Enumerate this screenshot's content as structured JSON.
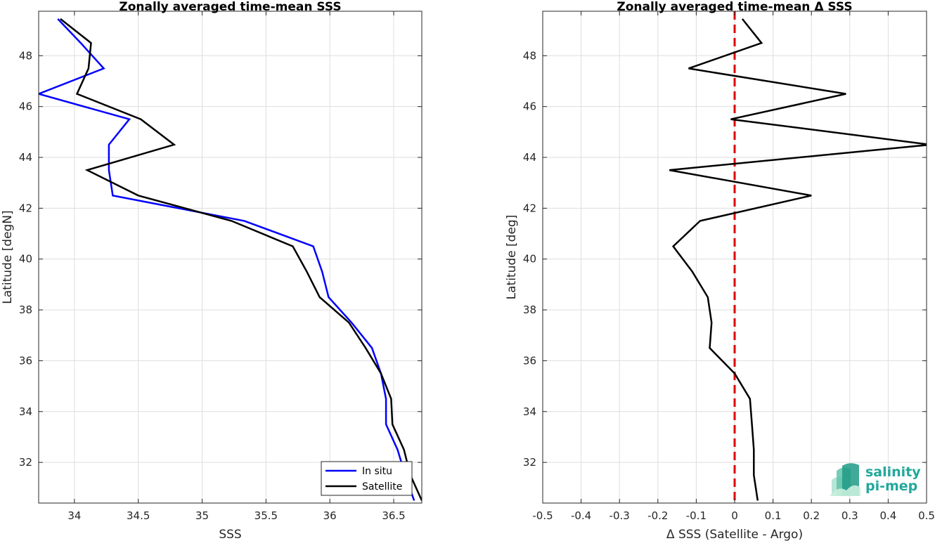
{
  "chart_data": [
    {
      "type": "line",
      "title": "Zonally averaged time-mean SSS",
      "xlabel": "SSS",
      "ylabel": "Latitude [degN]",
      "xlim": [
        33.72,
        36.72
      ],
      "ylim": [
        30.4,
        49.75
      ],
      "xticks": [
        34,
        34.5,
        35,
        35.5,
        36,
        36.5
      ],
      "xtick_labels": [
        "34",
        "34.5",
        "35",
        "35.5",
        "36",
        "36.5"
      ],
      "yticks": [
        32,
        34,
        36,
        38,
        40,
        42,
        44,
        46,
        48
      ],
      "ytick_labels": [
        "32",
        "34",
        "36",
        "38",
        "40",
        "42",
        "44",
        "46",
        "48"
      ],
      "grid": true,
      "legend_position": "bottom-right",
      "series": [
        {
          "name": "In situ",
          "color": "#0000ff",
          "y": [
            49.45,
            48.5,
            47.5,
            46.5,
            45.5,
            44.5,
            43.5,
            42.5,
            41.5,
            40.5,
            39.5,
            38.5,
            37.5,
            36.5,
            35.5,
            34.5,
            33.5,
            32.5,
            31.5,
            30.5
          ],
          "x": [
            33.87,
            34.05,
            34.23,
            33.72,
            34.43,
            34.27,
            34.27,
            34.3,
            35.33,
            35.87,
            35.94,
            35.99,
            36.17,
            36.33,
            36.4,
            36.44,
            36.44,
            36.53,
            36.59,
            36.66
          ]
        },
        {
          "name": "Satellite",
          "color": "#000000",
          "y": [
            49.45,
            48.5,
            47.5,
            46.5,
            45.5,
            44.5,
            43.5,
            42.5,
            41.5,
            40.5,
            39.5,
            38.5,
            37.5,
            36.5,
            35.5,
            34.5,
            33.5,
            32.5,
            31.5,
            30.5
          ],
          "x": [
            33.89,
            34.13,
            34.11,
            34.02,
            34.52,
            34.78,
            34.1,
            34.5,
            35.23,
            35.71,
            35.82,
            35.92,
            36.15,
            36.28,
            36.4,
            36.48,
            36.49,
            36.58,
            36.63,
            36.72
          ]
        }
      ]
    },
    {
      "type": "line",
      "title": "Zonally averaged time-mean Δ SSS",
      "xlabel": "Δ SSS (Satellite - Argo)",
      "ylabel": "Latitude [deg]",
      "xlim": [
        -0.5,
        0.5
      ],
      "ylim": [
        30.4,
        49.75
      ],
      "xticks": [
        -0.5,
        -0.4,
        -0.3,
        -0.2,
        -0.1,
        0,
        0.1,
        0.2,
        0.3,
        0.4,
        0.5
      ],
      "xtick_labels": [
        "-0.5",
        "-0.4",
        "-0.3",
        "-0.2",
        "-0.1",
        "0",
        "0.1",
        "0.2",
        "0.3",
        "0.4",
        "0.5"
      ],
      "yticks": [
        32,
        34,
        36,
        38,
        40,
        42,
        44,
        46,
        48
      ],
      "ytick_labels": [
        "32",
        "34",
        "36",
        "38",
        "40",
        "42",
        "44",
        "46",
        "48"
      ],
      "grid": true,
      "reference_line": {
        "x": 0,
        "color": "#e00000",
        "style": "dashed"
      },
      "series": [
        {
          "color": "#000000",
          "y": [
            49.45,
            48.5,
            47.5,
            46.5,
            45.5,
            44.5,
            43.5,
            42.5,
            41.5,
            40.5,
            39.5,
            38.5,
            37.5,
            36.5,
            35.5,
            34.5,
            33.5,
            32.5,
            31.5,
            30.5
          ],
          "x": [
            0.02,
            0.07,
            -0.12,
            0.29,
            -0.01,
            0.51,
            -0.17,
            0.2,
            -0.09,
            -0.16,
            -0.11,
            -0.07,
            -0.06,
            -0.065,
            0.0,
            0.04,
            0.045,
            0.05,
            0.05,
            0.06
          ]
        }
      ]
    }
  ],
  "logo": {
    "line1": "salinity",
    "line2": "pi-mep",
    "color": "#22a89a"
  }
}
